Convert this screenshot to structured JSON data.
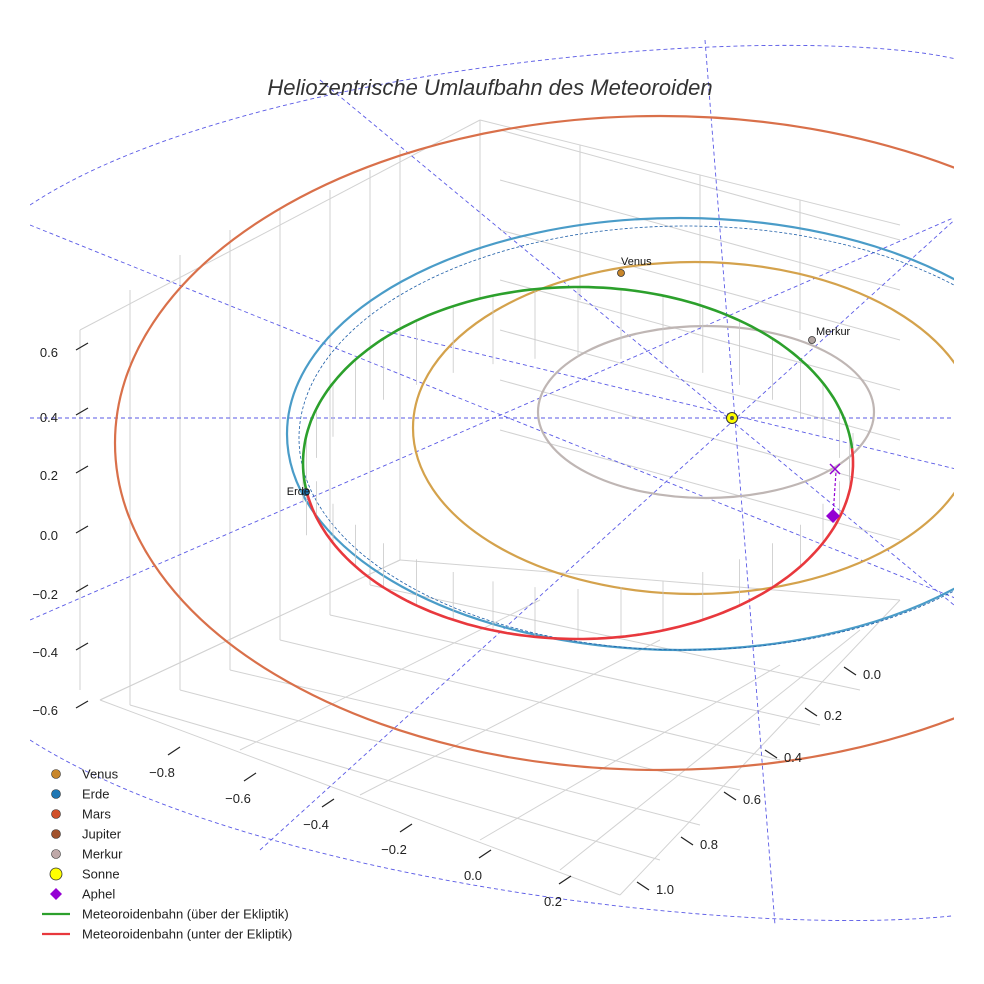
{
  "chart_data": {
    "type": "line",
    "title": "Heliozentrische Umlaufbahn des Meteoroiden",
    "projection": "3d",
    "xlabel": "",
    "ylabel": "",
    "zlabel": "",
    "axis_ticks": {
      "x": [
        "−0.8",
        "−0.6",
        "−0.4",
        "−0.2",
        "0.0",
        "0.2"
      ],
      "y": [
        "0.0",
        "0.2",
        "0.4",
        "0.6",
        "0.8",
        "1.0"
      ],
      "z": [
        "0.6",
        "0.4",
        "0.2",
        "0.0",
        "−0.2",
        "−0.4",
        "−0.6"
      ]
    },
    "orbits": [
      {
        "name": "Merkur",
        "radius_au": 0.39,
        "color": "#BFB6B4"
      },
      {
        "name": "Venus",
        "radius_au": 0.72,
        "color": "#D4A24C"
      },
      {
        "name": "Erde",
        "radius_au": 1.0,
        "color": "#4A9CC8"
      },
      {
        "name": "Mars",
        "radius_au": 1.52,
        "color": "#D9704A"
      }
    ],
    "bodies": [
      {
        "name": "Venus",
        "label": "Venus",
        "color": "#C8862A"
      },
      {
        "name": "Erde",
        "label": "Erde",
        "color": "#1F77B4"
      },
      {
        "name": "Merkur",
        "label": "Merkur",
        "color": "#B0A3A0"
      },
      {
        "name": "Sonne",
        "label": "",
        "color": "#FFFF00"
      }
    ],
    "series": [
      {
        "name": "Meteoroidenbahn (über der Ekliptik)",
        "color": "#2CA02C"
      },
      {
        "name": "Meteoroidenbahn (unter der Ekliptik)",
        "color": "#E8383D"
      }
    ],
    "aphel": {
      "name": "Aphel",
      "color": "#9400D3"
    },
    "legend": [
      {
        "label": "Venus",
        "marker": "circle",
        "color": "#C8862A"
      },
      {
        "label": "Erde",
        "marker": "circle",
        "color": "#1F77B4"
      },
      {
        "label": "Mars",
        "marker": "circle",
        "color": "#D0502A"
      },
      {
        "label": "Jupiter",
        "marker": "circle",
        "color": "#A0522D"
      },
      {
        "label": "Merkur",
        "marker": "circle",
        "color": "#BFA8A8"
      },
      {
        "label": "Sonne",
        "marker": "circle-large",
        "color": "#FFFF00"
      },
      {
        "label": "Aphel",
        "marker": "diamond",
        "color": "#9400D3"
      },
      {
        "label": "Meteoroidenbahn (über der Ekliptik)",
        "marker": "line",
        "color": "#2CA02C"
      },
      {
        "label": "Meteoroidenbahn (unter der Ekliptik)",
        "marker": "line",
        "color": "#E8383D"
      }
    ],
    "legend_position": "bottom-left"
  }
}
